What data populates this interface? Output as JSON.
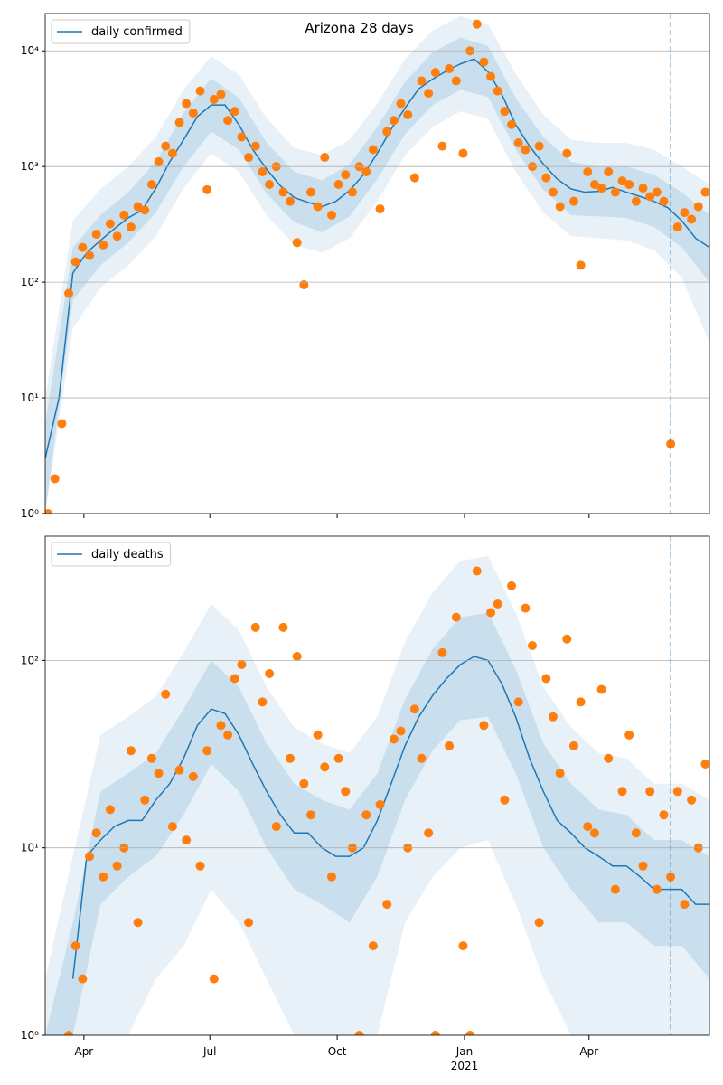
{
  "chart_data": [
    {
      "type": "line",
      "title": "Arizona 28 days",
      "yscale": "log",
      "grid": "y",
      "legend": "upper left",
      "xlim": [
        3,
        483
      ],
      "ylim": [
        1,
        21000
      ],
      "vline": 455,
      "yticks": [
        {
          "value": 1,
          "label": "10⁰"
        },
        {
          "value": 10,
          "label": "10¹"
        },
        {
          "value": 100,
          "label": "10²"
        },
        {
          "value": 1000,
          "label": "10³"
        },
        {
          "value": 10000,
          "label": "10⁴"
        }
      ],
      "bands": [
        {
          "color": "#1f77b4",
          "opacity": 0.1,
          "x": [
            3,
            23,
            43,
            63,
            83,
            103,
            123,
            143,
            163,
            183,
            203,
            223,
            243,
            263,
            283,
            303,
            323,
            343,
            363,
            383,
            403,
            423,
            443,
            463,
            483
          ],
          "lower": [
            1,
            40,
            90,
            140,
            250,
            650,
            1300,
            900,
            380,
            210,
            180,
            240,
            500,
            1250,
            2200,
            3000,
            2600,
            900,
            400,
            250,
            240,
            230,
            190,
            110,
            30
          ],
          "upper": [
            10,
            340,
            640,
            1000,
            1800,
            4600,
            9000,
            6200,
            2600,
            1450,
            1250,
            1700,
            3500,
            8500,
            15000,
            20000,
            17000,
            6300,
            2800,
            1700,
            1600,
            1600,
            1400,
            1000,
            700
          ]
        },
        {
          "color": "#1f77b4",
          "opacity": 0.15,
          "x": [
            3,
            23,
            43,
            63,
            83,
            103,
            123,
            143,
            163,
            183,
            203,
            223,
            243,
            263,
            283,
            303,
            323,
            343,
            363,
            383,
            403,
            423,
            443,
            463,
            483
          ],
          "lower": [
            1,
            70,
            140,
            220,
            400,
            1000,
            2000,
            1400,
            580,
            330,
            270,
            370,
            780,
            1900,
            3400,
            4600,
            4000,
            1400,
            630,
            380,
            370,
            360,
            300,
            200,
            100
          ],
          "upper": [
            6,
            200,
            380,
            600,
            1100,
            2900,
            5800,
            3900,
            1600,
            900,
            760,
            1050,
            2200,
            5400,
            9700,
            13000,
            11000,
            3900,
            1800,
            1100,
            1000,
            1000,
            850,
            600,
            380
          ]
        }
      ],
      "series": [
        {
          "name": "daily confirmed",
          "color": "#1f77b4",
          "kind": "line",
          "x": [
            3,
            13,
            23,
            33,
            43,
            53,
            63,
            73,
            83,
            93,
            103,
            113,
            123,
            133,
            143,
            153,
            163,
            173,
            183,
            193,
            203,
            213,
            223,
            233,
            243,
            253,
            263,
            273,
            283,
            293,
            303,
            313,
            323,
            333,
            343,
            353,
            363,
            373,
            383,
            393,
            403,
            413,
            423,
            433,
            443,
            453,
            463,
            473,
            483
          ],
          "values": [
            3,
            10,
            120,
            180,
            230,
            290,
            360,
            420,
            650,
            1100,
            1700,
            2700,
            3400,
            3400,
            2300,
            1400,
            950,
            680,
            540,
            490,
            450,
            500,
            620,
            850,
            1300,
            2100,
            3200,
            4700,
            5700,
            6700,
            7700,
            8500,
            6600,
            4200,
            2300,
            1500,
            1050,
            780,
            640,
            600,
            610,
            660,
            600,
            550,
            500,
            440,
            340,
            240,
            200
          ]
        },
        {
          "color": "#ff7f0e",
          "kind": "scatter",
          "x": [
            5,
            10,
            15,
            20,
            25,
            30,
            35,
            40,
            45,
            50,
            55,
            60,
            65,
            70,
            75,
            80,
            85,
            90,
            95,
            100,
            105,
            110,
            115,
            120,
            125,
            130,
            135,
            140,
            145,
            150,
            155,
            160,
            165,
            170,
            175,
            180,
            185,
            190,
            195,
            200,
            205,
            210,
            215,
            220,
            225,
            230,
            235,
            240,
            245,
            250,
            255,
            260,
            265,
            270,
            275,
            280,
            285,
            290,
            295,
            300,
            305,
            310,
            315,
            320,
            325,
            330,
            335,
            340,
            345,
            350,
            355,
            360,
            365,
            370,
            375,
            380,
            385,
            390,
            395,
            400,
            405,
            410,
            415,
            420,
            425,
            430,
            435,
            440,
            445,
            450,
            455,
            460,
            465,
            470,
            475,
            480
          ],
          "values": [
            1,
            2,
            6,
            80,
            150,
            200,
            170,
            260,
            210,
            320,
            250,
            380,
            300,
            450,
            420,
            700,
            1100,
            1500,
            1300,
            2400,
            3500,
            2900,
            4500,
            630,
            3800,
            4200,
            2500,
            3000,
            1800,
            1200,
            1500,
            900,
            700,
            1000,
            600,
            500,
            220,
            95,
            600,
            450,
            1200,
            380,
            700,
            850,
            600,
            1000,
            900,
            1400,
            430,
            2000,
            2500,
            3500,
            2800,
            800,
            5500,
            4300,
            6500,
            1500,
            7000,
            5500,
            1300,
            10000,
            17000,
            8000,
            6000,
            4500,
            3000,
            2300,
            1600,
            1400,
            1000,
            1500,
            800,
            600,
            450,
            1300,
            500,
            140,
            900,
            700,
            650,
            900,
            600,
            750,
            700,
            500,
            650,
            550,
            600,
            500,
            4,
            300,
            400,
            350,
            450,
            600
          ]
        }
      ]
    },
    {
      "type": "line",
      "yscale": "log",
      "grid": "y",
      "legend": "upper left",
      "xlim": [
        3,
        483
      ],
      "ylim": [
        1,
        460
      ],
      "vline": 455,
      "xticks": [
        {
          "value": 31,
          "label": "Apr"
        },
        {
          "value": 122,
          "label": "Jul"
        },
        {
          "value": 214,
          "label": "Oct"
        },
        {
          "value": 306,
          "label": "Jan\n2021"
        },
        {
          "value": 396,
          "label": "Apr"
        }
      ],
      "yticks": [
        {
          "value": 1,
          "label": "10⁰"
        },
        {
          "value": 10,
          "label": "10¹"
        },
        {
          "value": 100,
          "label": "10²"
        }
      ],
      "bands": [
        {
          "color": "#1f77b4",
          "opacity": 0.1,
          "x": [
            3,
            23,
            43,
            63,
            83,
            103,
            123,
            143,
            163,
            183,
            203,
            223,
            243,
            263,
            283,
            303,
            323,
            343,
            363,
            383,
            403,
            423,
            443,
            463,
            483
          ],
          "lower": [
            1,
            1,
            1,
            1,
            2,
            3,
            6,
            4,
            2,
            1,
            1,
            1,
            1,
            4,
            7,
            10,
            11,
            5,
            2,
            1,
            1,
            1,
            1,
            1,
            1
          ],
          "upper": [
            2,
            9,
            40,
            50,
            64,
            110,
            200,
            145,
            72,
            44,
            36,
            32,
            50,
            125,
            230,
            340,
            360,
            180,
            72,
            44,
            32,
            30,
            22,
            22,
            18
          ]
        },
        {
          "color": "#1f77b4",
          "opacity": 0.15,
          "x": [
            3,
            23,
            43,
            63,
            83,
            103,
            123,
            143,
            163,
            183,
            203,
            223,
            243,
            263,
            283,
            303,
            323,
            343,
            363,
            383,
            403,
            423,
            443,
            463,
            483
          ],
          "lower": [
            1,
            1,
            5,
            7,
            9,
            15,
            28,
            20,
            10,
            6,
            5,
            4,
            7,
            18,
            33,
            48,
            50,
            25,
            10,
            6,
            4,
            4,
            3,
            3,
            2
          ],
          "upper": [
            1,
            4,
            20,
            25,
            32,
            55,
            100,
            72,
            36,
            22,
            18,
            16,
            25,
            62,
            115,
            170,
            180,
            90,
            36,
            22,
            16,
            15,
            11,
            11,
            9
          ]
        }
      ],
      "series": [
        {
          "name": "daily deaths",
          "color": "#1f77b4",
          "kind": "line",
          "x": [
            3,
            13,
            23,
            33,
            43,
            53,
            63,
            73,
            83,
            93,
            103,
            113,
            123,
            133,
            143,
            153,
            163,
            173,
            183,
            193,
            203,
            213,
            223,
            233,
            243,
            253,
            263,
            273,
            283,
            293,
            303,
            313,
            323,
            333,
            343,
            353,
            363,
            373,
            383,
            393,
            403,
            413,
            423,
            433,
            443,
            453,
            463,
            473,
            483
          ],
          "values": [
            null,
            null,
            2,
            9,
            11,
            13,
            14,
            14,
            18,
            22,
            30,
            45,
            55,
            52,
            40,
            28,
            20,
            15,
            12,
            12,
            10,
            9,
            9,
            10,
            14,
            22,
            35,
            50,
            65,
            80,
            95,
            105,
            100,
            75,
            50,
            30,
            20,
            14,
            12,
            10,
            9,
            8,
            8,
            7,
            6,
            6,
            6,
            5,
            5
          ]
        },
        {
          "color": "#ff7f0e",
          "kind": "scatter",
          "x": [
            20,
            25,
            30,
            35,
            40,
            45,
            50,
            55,
            60,
            65,
            70,
            75,
            80,
            85,
            90,
            95,
            100,
            105,
            110,
            115,
            120,
            125,
            130,
            135,
            140,
            145,
            150,
            155,
            160,
            165,
            170,
            175,
            180,
            185,
            190,
            195,
            200,
            205,
            210,
            215,
            220,
            225,
            230,
            235,
            240,
            245,
            250,
            255,
            260,
            265,
            270,
            275,
            280,
            285,
            290,
            295,
            300,
            305,
            310,
            315,
            320,
            325,
            330,
            335,
            340,
            345,
            350,
            355,
            360,
            365,
            370,
            375,
            380,
            385,
            390,
            395,
            400,
            405,
            410,
            415,
            420,
            425,
            430,
            435,
            440,
            445,
            450,
            455,
            460,
            465,
            470,
            475,
            480
          ],
          "values": [
            1,
            3,
            2,
            9,
            12,
            7,
            16,
            8,
            10,
            33,
            4,
            18,
            30,
            25,
            66,
            13,
            26,
            11,
            24,
            8,
            33,
            2,
            45,
            40,
            80,
            95,
            4,
            150,
            60,
            85,
            13,
            150,
            30,
            105,
            22,
            15,
            40,
            27,
            7,
            30,
            20,
            10,
            1,
            15,
            3,
            17,
            5,
            38,
            42,
            10,
            55,
            30,
            12,
            1,
            110,
            35,
            170,
            3,
            1,
            300,
            45,
            180,
            200,
            18,
            250,
            60,
            190,
            120,
            4,
            80,
            50,
            25,
            130,
            35,
            60,
            13,
            12,
            70,
            30,
            6,
            20,
            40,
            12,
            8,
            20,
            6,
            15,
            7,
            20,
            5,
            18,
            10,
            28
          ]
        }
      ]
    }
  ]
}
